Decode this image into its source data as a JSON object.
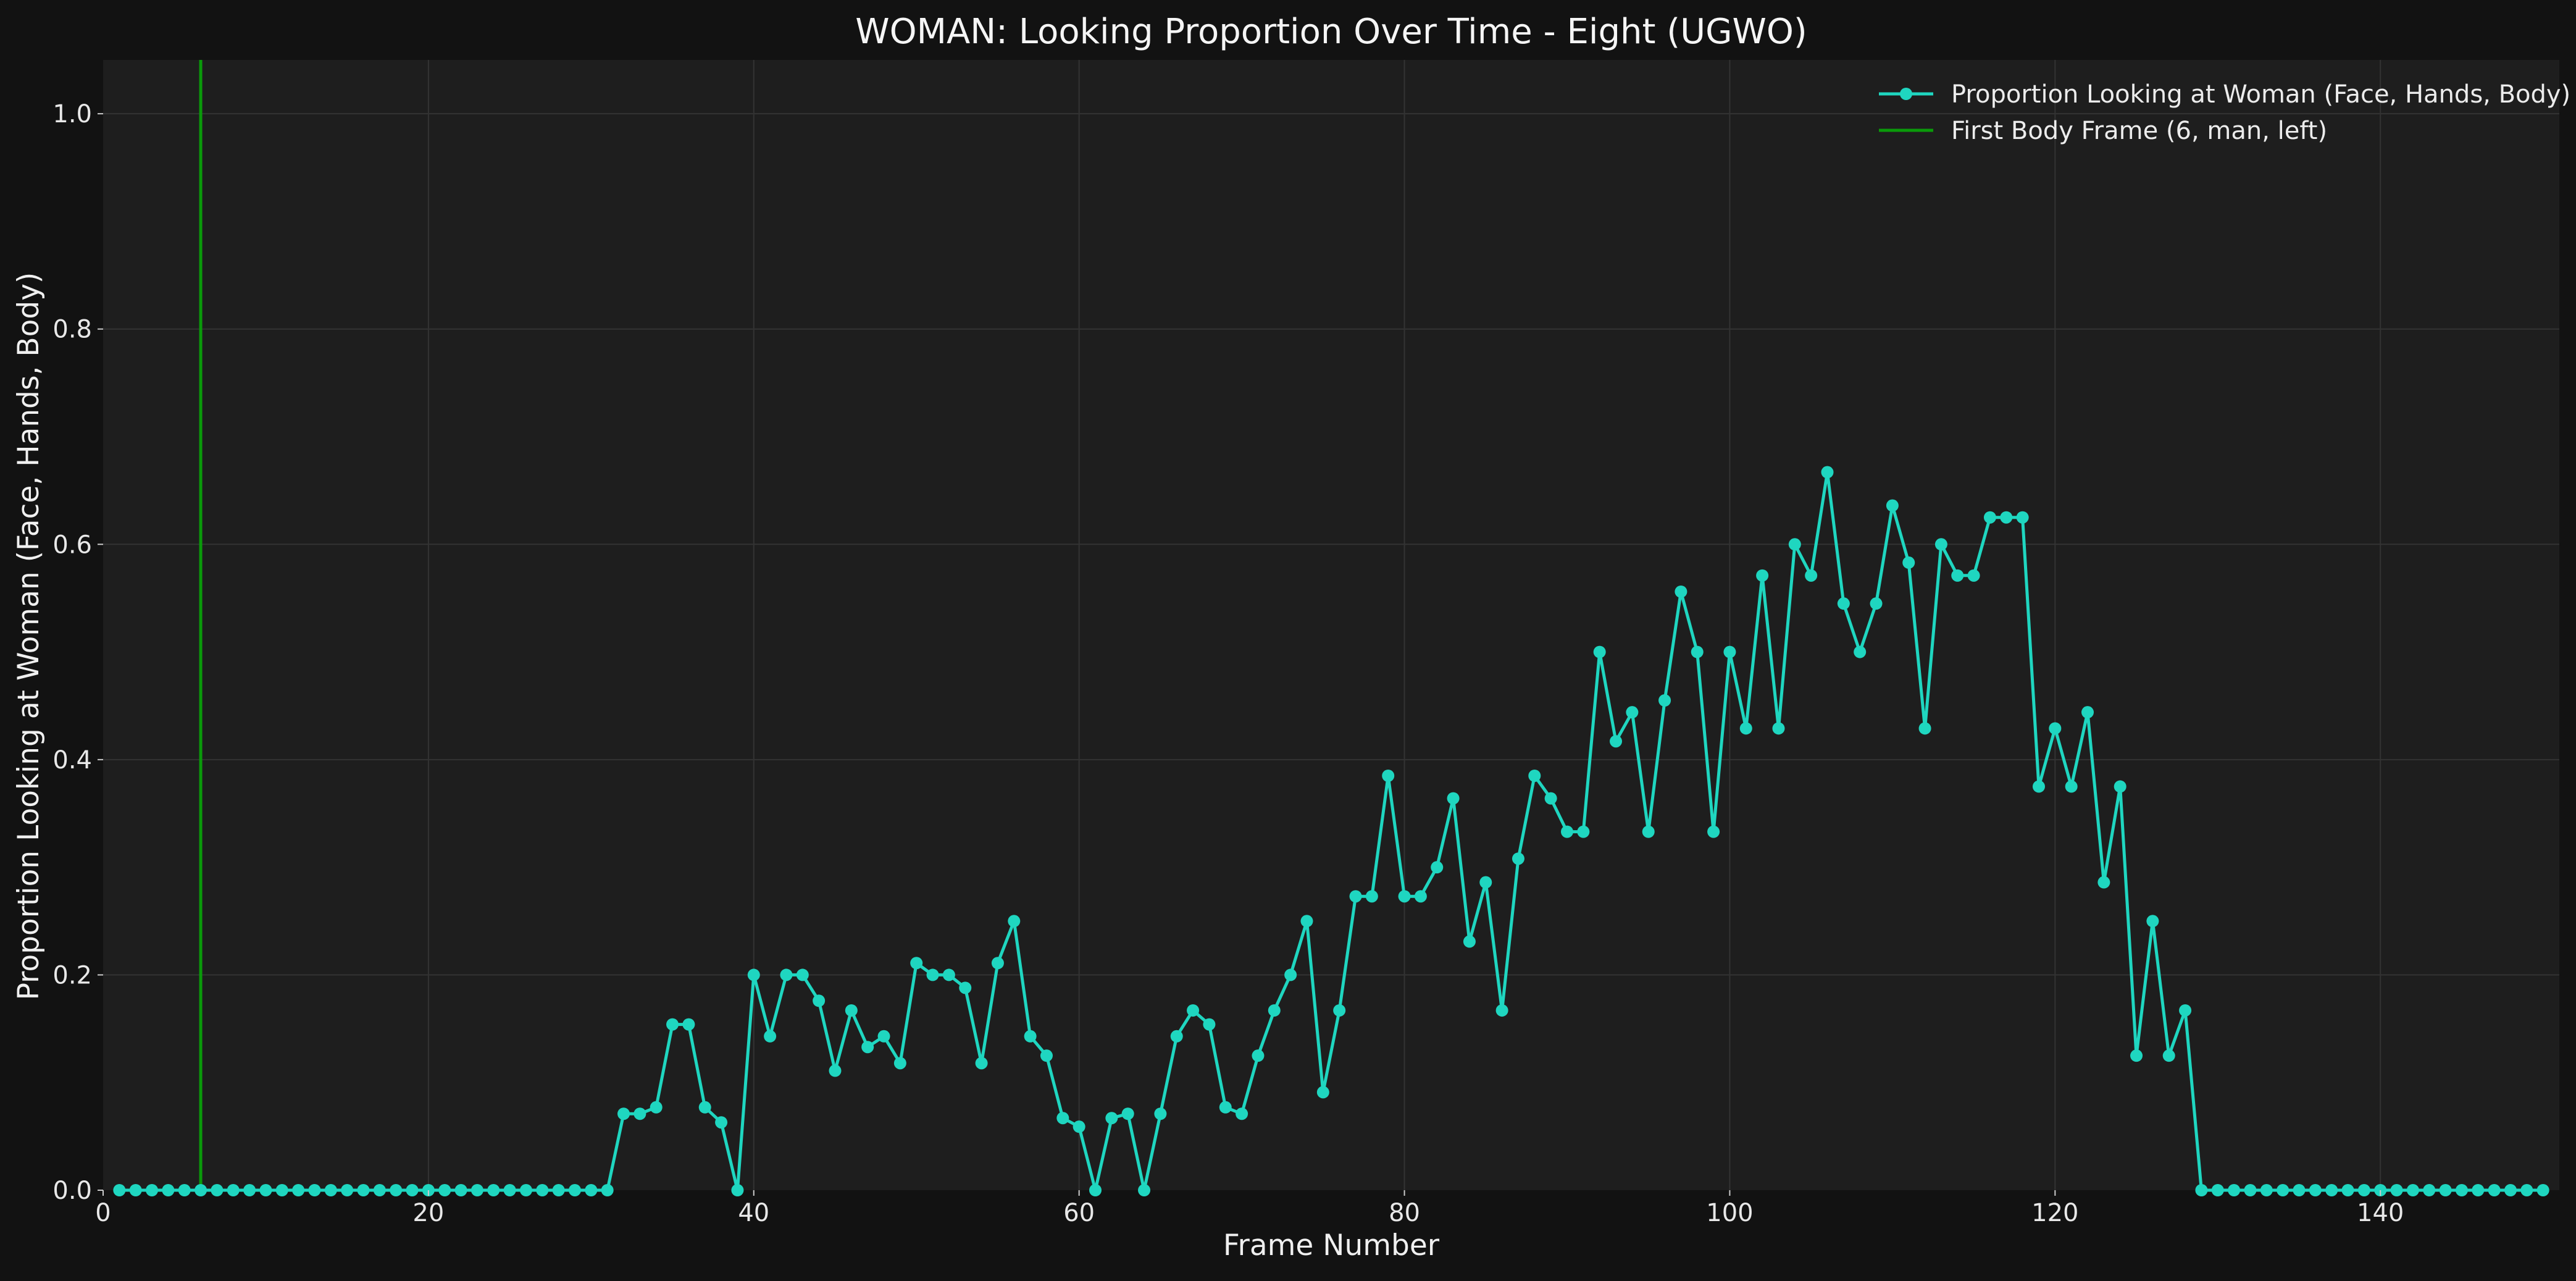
{
  "chart_data": {
    "type": "line",
    "title": "WOMAN: Looking Proportion Over Time - Eight (UGWO)",
    "xlabel": "Frame Number",
    "ylabel": "Proportion Looking at Woman (Face, Hands, Body)",
    "xlim": [
      0,
      151
    ],
    "ylim": [
      0,
      1.05
    ],
    "xticks": [
      "0",
      "20",
      "40",
      "60",
      "80",
      "100",
      "120",
      "140"
    ],
    "xtick_values": [
      0,
      20,
      40,
      60,
      80,
      100,
      120,
      140
    ],
    "yticks": [
      "0.0",
      "0.2",
      "0.4",
      "0.6",
      "0.8",
      "1.0"
    ],
    "ytick_values": [
      0,
      0.2,
      0.4,
      0.6,
      0.8,
      1.0
    ],
    "grid": true,
    "legend_position": "top-right",
    "series": [
      {
        "name": "Proportion Looking at Woman (Face, Hands, Body)",
        "color": "#1fd6c0",
        "marker": "circle",
        "x": [
          1,
          2,
          3,
          4,
          5,
          6,
          7,
          8,
          9,
          10,
          11,
          12,
          13,
          14,
          15,
          16,
          17,
          18,
          19,
          20,
          21,
          22,
          23,
          24,
          25,
          26,
          27,
          28,
          29,
          30,
          31,
          32,
          33,
          34,
          35,
          36,
          37,
          38,
          39,
          40,
          41,
          42,
          43,
          44,
          45,
          46,
          47,
          48,
          49,
          50,
          51,
          52,
          53,
          54,
          55,
          56,
          57,
          58,
          59,
          60,
          61,
          62,
          63,
          64,
          65,
          66,
          67,
          68,
          69,
          70,
          71,
          72,
          73,
          74,
          75,
          76,
          77,
          78,
          79,
          80,
          81,
          82,
          83,
          84,
          85,
          86,
          87,
          88,
          89,
          90,
          91,
          92,
          93,
          94,
          95,
          96,
          97,
          98,
          99,
          100,
          101,
          102,
          103,
          104,
          105,
          106,
          107,
          108,
          109,
          110,
          111,
          112,
          113,
          114,
          115,
          116,
          117,
          118,
          119,
          120,
          121,
          122,
          123,
          124,
          125,
          126,
          127,
          128,
          129,
          130,
          131,
          132,
          133,
          134,
          135,
          136,
          137,
          138,
          139,
          140,
          141,
          142,
          143,
          144,
          145,
          146,
          147,
          148,
          149,
          150
        ],
        "y": [
          0,
          0,
          0,
          0,
          0,
          0,
          0,
          0,
          0,
          0,
          0,
          0,
          0,
          0,
          0,
          0,
          0,
          0,
          0,
          0,
          0,
          0,
          0,
          0,
          0,
          0,
          0,
          0,
          0,
          0,
          0,
          0.071,
          0.071,
          0.077,
          0.154,
          0.154,
          0.077,
          0.063,
          0,
          0.2,
          0.143,
          0.2,
          0.2,
          0.176,
          0.111,
          0.167,
          0.133,
          0.143,
          0.118,
          0.211,
          0.2,
          0.2,
          0.188,
          0.118,
          0.211,
          0.25,
          0.143,
          0.125,
          0.067,
          0.059,
          0,
          0.067,
          0.071,
          0,
          0.071,
          0.143,
          0.167,
          0.154,
          0.077,
          0.071,
          0.125,
          0.167,
          0.2,
          0.25,
          0.091,
          0.167,
          0.273,
          0.273,
          0.385,
          0.273,
          0.273,
          0.3,
          0.364,
          0.231,
          0.286,
          0.167,
          0.308,
          0.385,
          0.364,
          0.333,
          0.333,
          0.5,
          0.417,
          0.444,
          0.333,
          0.455,
          0.556,
          0.5,
          0.333,
          0.5,
          0.429,
          0.571,
          0.429,
          0.6,
          0.571,
          0.667,
          0.545,
          0.5,
          0.545,
          0.636,
          0.583,
          0.429,
          0.6,
          0.571,
          0.571,
          0.625,
          0.625,
          0.625,
          0.375,
          0.429,
          0.375,
          0.444,
          0.286,
          0.375,
          0.125,
          0.25,
          0.125,
          0.167,
          0,
          0,
          0,
          0,
          0,
          0,
          0,
          0,
          0,
          0,
          0,
          0,
          0,
          0,
          0,
          0,
          0,
          0,
          0,
          0,
          0,
          0
        ]
      }
    ],
    "vlines": [
      {
        "name": "First Body Frame (6, man, left)",
        "x": 6,
        "color": "#0a9a0a"
      }
    ],
    "colors": {
      "figure_bg": "#121212",
      "axes_bg": "#1e1e1e",
      "grid": "#333333",
      "text": "#eeeeee"
    }
  }
}
